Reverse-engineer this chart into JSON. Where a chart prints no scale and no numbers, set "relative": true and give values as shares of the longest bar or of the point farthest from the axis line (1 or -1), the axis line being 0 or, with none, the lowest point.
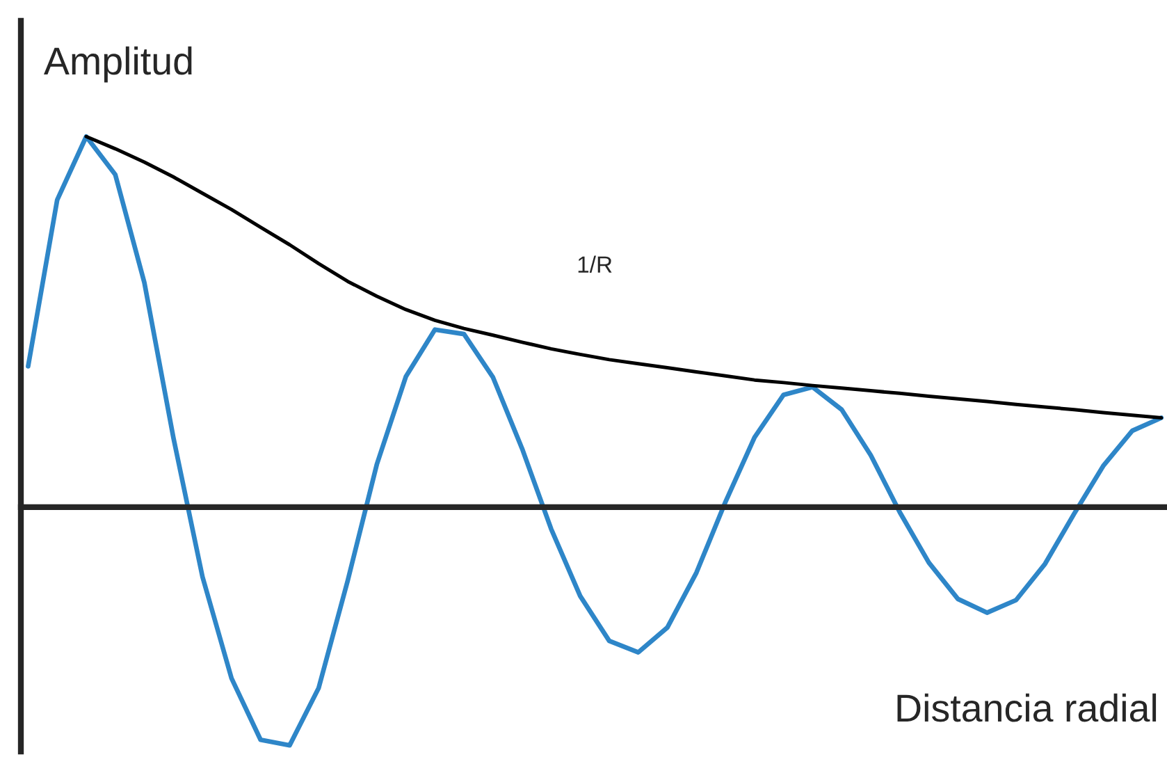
{
  "chart_data": {
    "type": "line",
    "relative": true,
    "ylabel": "Amplitud",
    "xlabel": "Distancia radial",
    "annotations": [
      "1/R"
    ],
    "categories": [
      null,
      null,
      null,
      null,
      null,
      null,
      null,
      null,
      null,
      null,
      null,
      null,
      null,
      null,
      null,
      null,
      null,
      null,
      null,
      null,
      null,
      null,
      null,
      null,
      null,
      null,
      null,
      null,
      null,
      null,
      null,
      null,
      null,
      null,
      null,
      null,
      null,
      null,
      null,
      null
    ],
    "series": [
      {
        "color": "#2e86c8",
        "values": [
          0.38,
          0.829,
          1.0,
          0.897,
          0.606,
          0.187,
          -0.188,
          -0.462,
          -0.628,
          -0.643,
          -0.488,
          -0.198,
          0.115,
          0.352,
          0.479,
          0.467,
          0.35,
          0.158,
          -0.059,
          -0.24,
          -0.361,
          -0.392,
          -0.325,
          -0.177,
          0.014,
          0.188,
          0.303,
          0.324,
          0.263,
          0.14,
          -0.014,
          -0.15,
          -0.248,
          -0.285,
          -0.251,
          -0.153,
          -0.018,
          0.111,
          0.206,
          0.241
        ]
      },
      {
        "color": "#000000",
        "values": [
          null,
          null,
          1.0,
          0.967,
          0.931,
          0.891,
          0.847,
          0.803,
          0.755,
          0.708,
          0.657,
          0.609,
          0.569,
          0.533,
          0.504,
          0.482,
          0.464,
          0.445,
          0.427,
          0.412,
          0.398,
          0.387,
          0.376,
          0.365,
          0.354,
          0.343,
          0.336,
          0.328,
          0.321,
          0.314,
          0.307,
          0.299,
          0.292,
          0.285,
          0.277,
          0.27,
          0.263,
          0.255,
          0.248,
          0.241
        ]
      }
    ],
    "grid": false,
    "legend": false,
    "marker": "none",
    "line_style": "solid"
  }
}
